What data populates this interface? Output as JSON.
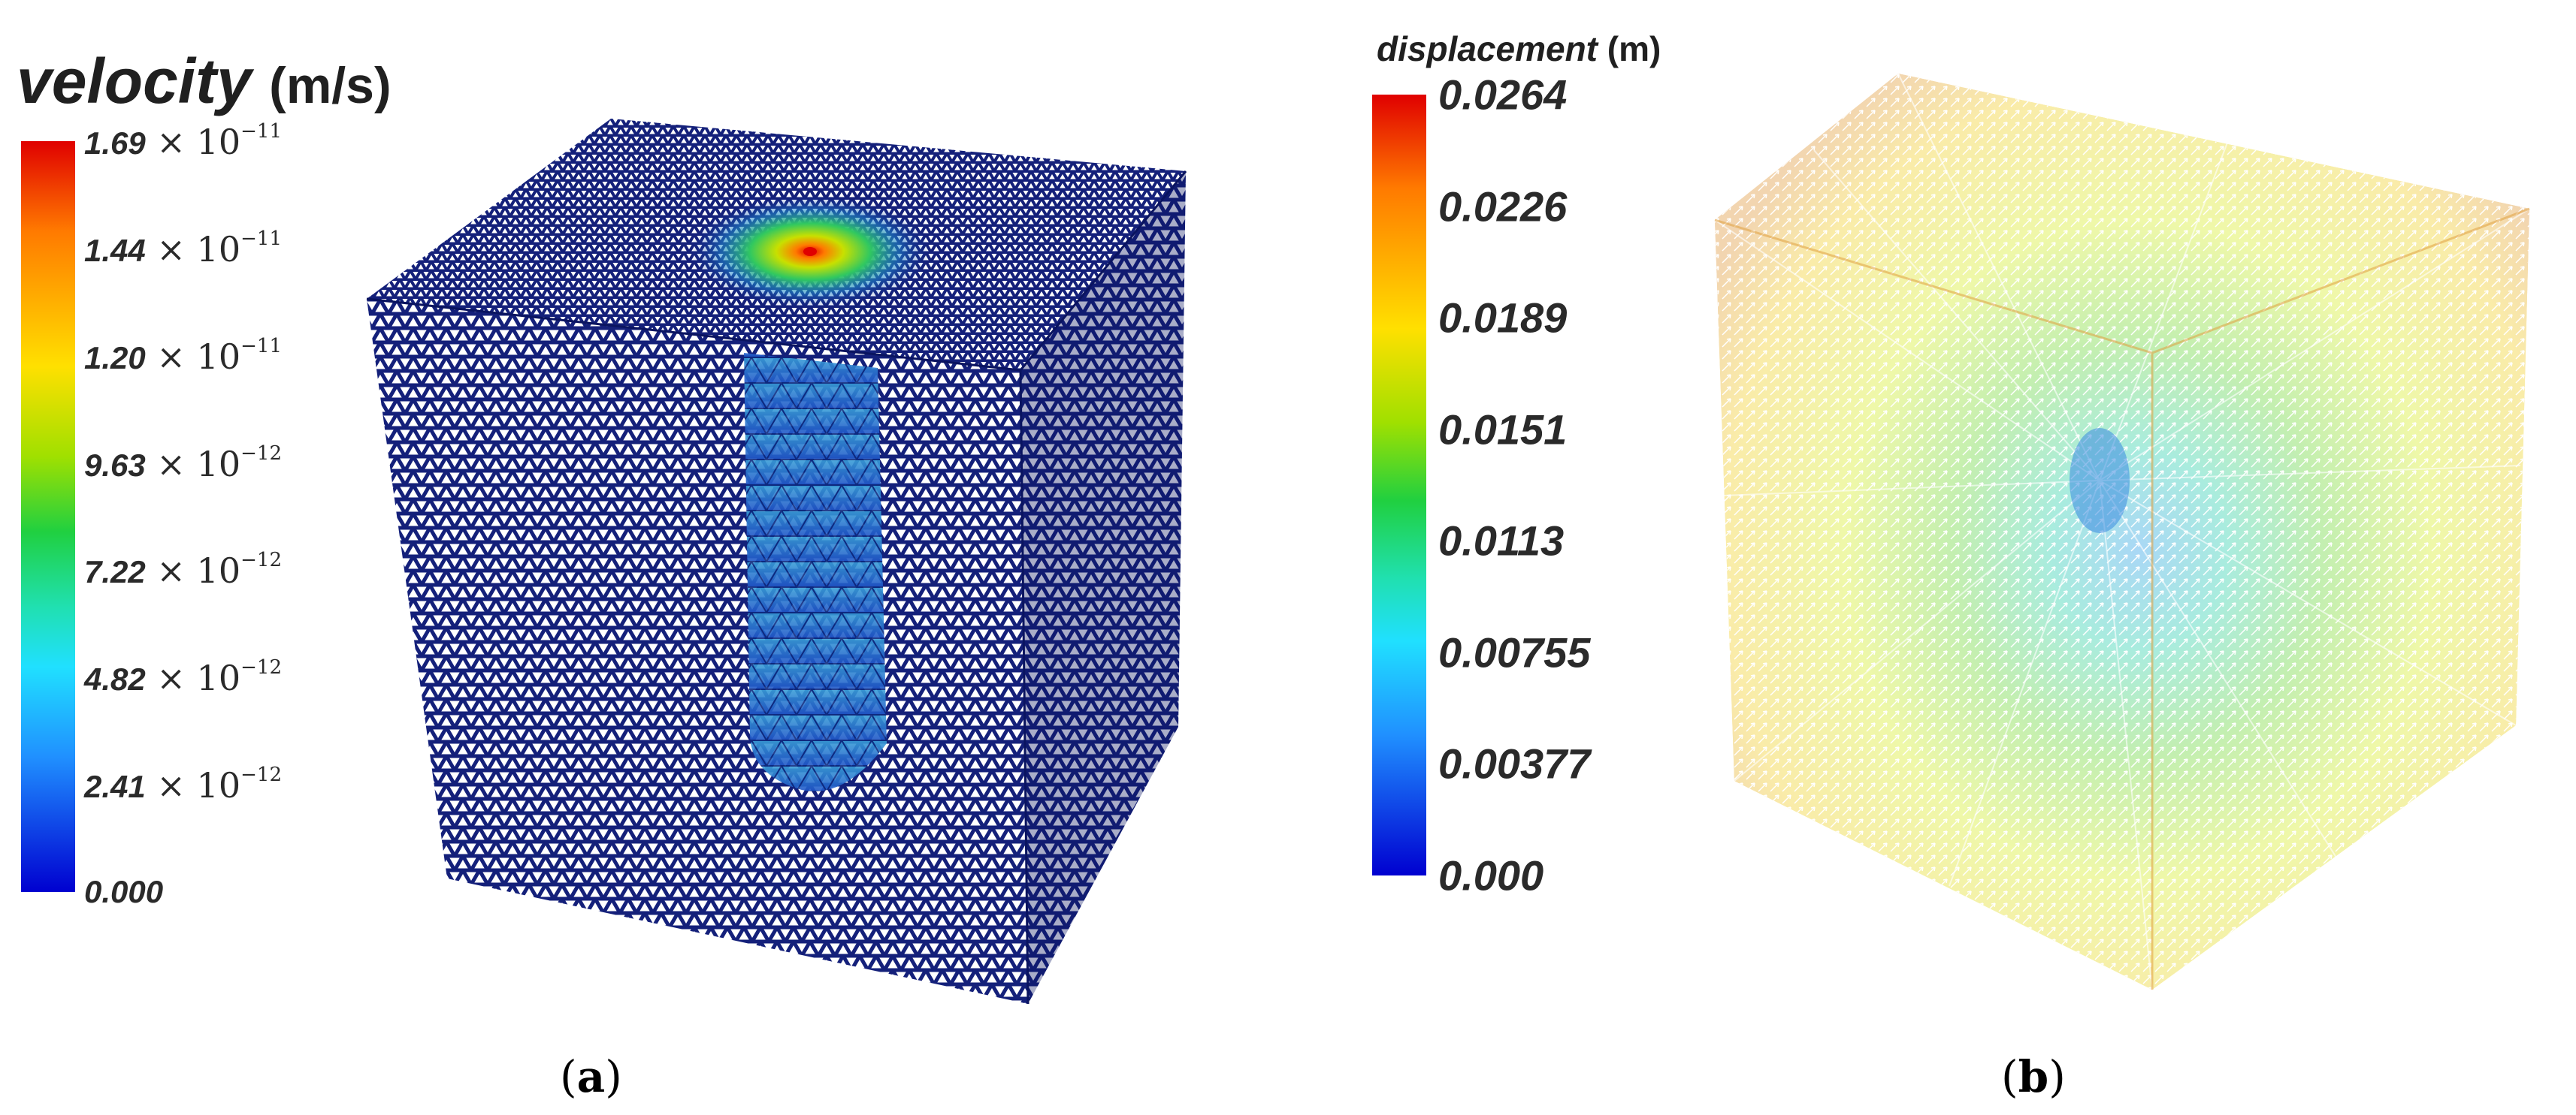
{
  "panel_a": {
    "title_quantity": "velocity",
    "title_unit": "(m/s)",
    "ticks": [
      {
        "mantissa": "1.69",
        "times": "×",
        "base": "10",
        "exponent": "−11",
        "value": 1.69e-11
      },
      {
        "mantissa": "1.44",
        "times": "×",
        "base": "10",
        "exponent": "−11",
        "value": 1.44e-11
      },
      {
        "mantissa": "1.20",
        "times": "×",
        "base": "10",
        "exponent": "−11",
        "value": 1.2e-11
      },
      {
        "mantissa": "9.63",
        "times": "×",
        "base": "10",
        "exponent": "−12",
        "value": 9.63e-12
      },
      {
        "mantissa": "7.22",
        "times": "×",
        "base": "10",
        "exponent": "−12",
        "value": 7.22e-12
      },
      {
        "mantissa": "4.82",
        "times": "×",
        "base": "10",
        "exponent": "−12",
        "value": 4.82e-12
      },
      {
        "mantissa": "2.41",
        "times": "×",
        "base": "10",
        "exponent": "−12",
        "value": 2.41e-12
      },
      {
        "mantissa": "0.000",
        "times": "",
        "base": "",
        "exponent": "",
        "value": 0
      }
    ],
    "caption_open": "(",
    "caption_letter": "a",
    "caption_close": ")"
  },
  "panel_b": {
    "title_quantity": "displacement",
    "title_unit": "(m)",
    "ticks": [
      "0.0264",
      "0.0226",
      "0.0189",
      "0.0151",
      "0.0113",
      "0.00755",
      "0.00377",
      "0.000"
    ],
    "caption_open": "(",
    "caption_letter": "b",
    "caption_close": ")"
  },
  "colormap": [
    "#0000d0",
    "#2090ff",
    "#20e0ff",
    "#20e0b0",
    "#20d040",
    "#a0e000",
    "#ffe000",
    "#ff7a00",
    "#e00000"
  ],
  "colors": {
    "mesh_face": "#14207a",
    "mesh_edge": "#ffffff",
    "hotspot": "#e00000"
  }
}
